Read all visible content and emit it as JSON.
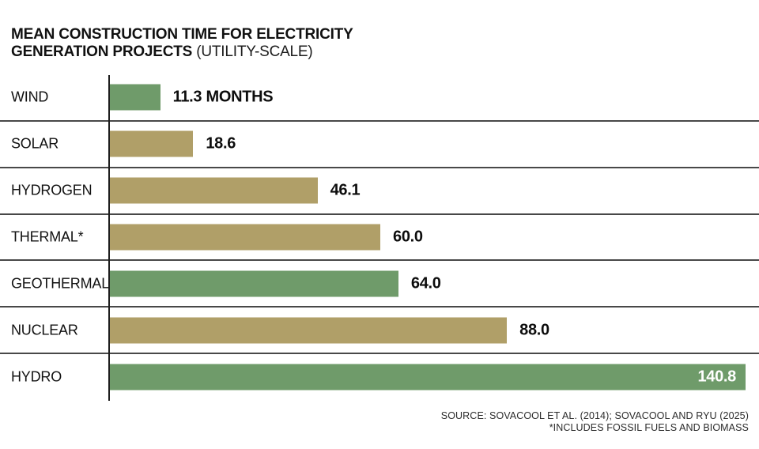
{
  "header": {
    "title_line1": "MEAN CONSTRUCTION TIME FOR ELECTRICITY",
    "title_line2": "GENERATION PROJECTS",
    "title_qualifier": "(UTILITY-SCALE)"
  },
  "footer": {
    "source": "SOURCE: SOVACOOL ET AL. (2014); SOVACOOL AND RYU (2025)",
    "footnote": "*INCLUDES FOSSIL FUELS AND BIOMASS"
  },
  "chart_data": {
    "type": "bar",
    "orientation": "horizontal",
    "title": "MEAN CONSTRUCTION TIME FOR ELECTRICITY GENERATION PROJECTS (UTILITY-SCALE)",
    "unit": "months",
    "categories": [
      "WIND",
      "SOLAR",
      "HYDROGEN",
      "THERMAL*",
      "GEOTHERMAL",
      "NUCLEAR",
      "HYDRO"
    ],
    "values": [
      11.3,
      18.6,
      46.1,
      60.0,
      64.0,
      88.0,
      140.8
    ],
    "value_labels": [
      "11.3 MONTHS",
      "18.6",
      "46.1",
      "60.0",
      "64.0",
      "88.0",
      "140.8"
    ],
    "bar_colors": [
      "#6f9b6a",
      "#b09f68",
      "#b09f68",
      "#b09f68",
      "#6f9b6a",
      "#b09f68",
      "#6f9b6a"
    ],
    "value_label_positions": [
      "outside",
      "outside",
      "outside",
      "outside",
      "outside",
      "outside",
      "inside"
    ],
    "xlim": [
      0,
      140.8
    ],
    "grid": false,
    "legend": false,
    "accent_green": "#6f9b6a",
    "accent_tan": "#b09f68"
  }
}
